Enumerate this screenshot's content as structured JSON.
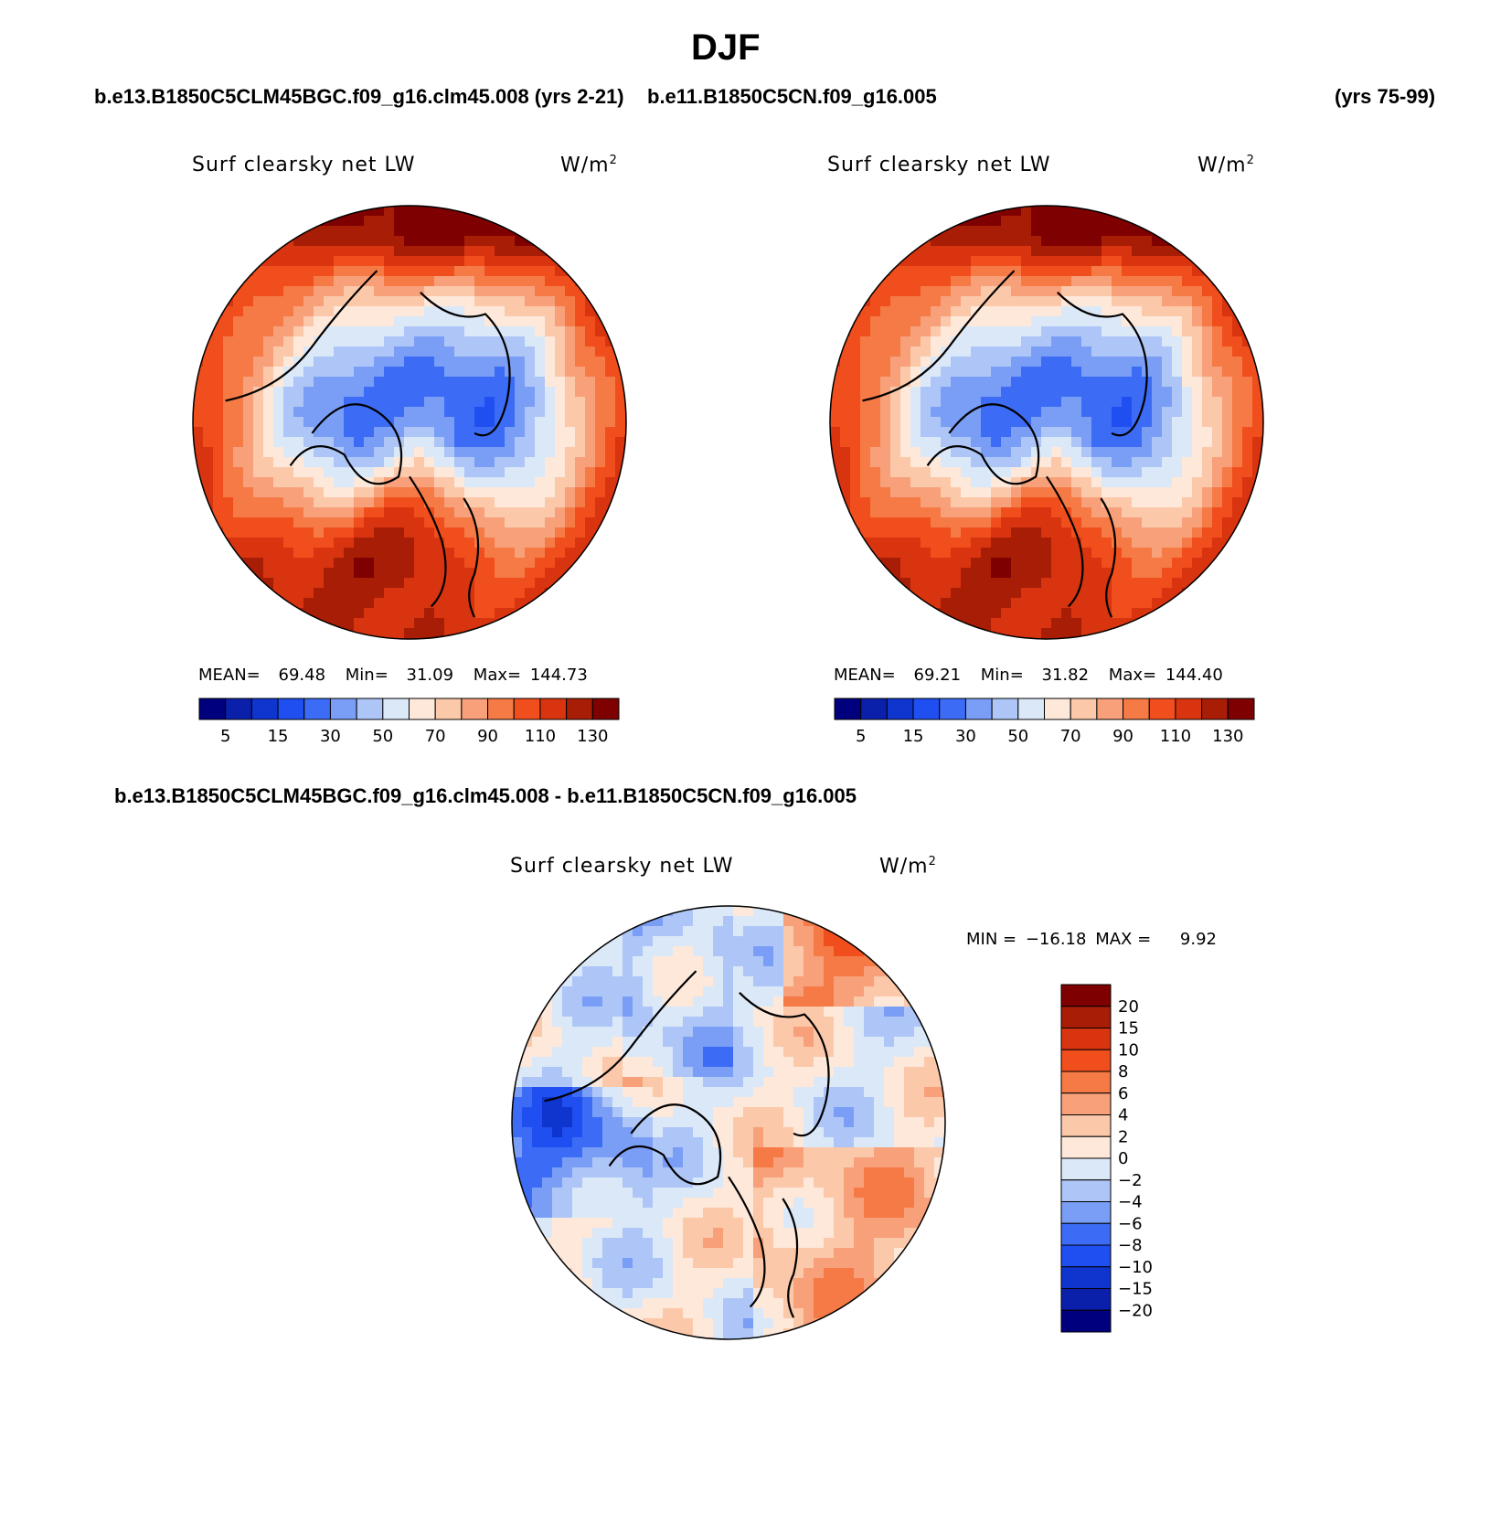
{
  "figure": {
    "title": "DJF",
    "case_a": "b.e13.B1850C5CLM45BGC.f09_g16.clm45.008 (yrs 2-21)",
    "case_b": "b.e11.B1850C5CN.f09_g16.005",
    "case_b_years": "(yrs 75-99)",
    "diff_title": "b.e13.B1850C5CLM45BGC.f09_g16.clm45.008 - b.e11.B1850C5CN.f09_g16.005"
  },
  "panels": [
    {
      "variable": "Surf clearsky net LW",
      "units": "W/m",
      "units_sup": "2",
      "stats": {
        "mean_label": "MEAN=",
        "mean": "69.48",
        "min_label": "Min=",
        "min": "31.09",
        "max_label": "Max=",
        "max": "144.73"
      }
    },
    {
      "variable": "Surf clearsky net LW",
      "units": "W/m",
      "units_sup": "2",
      "stats": {
        "mean_label": "MEAN=",
        "mean": "69.21",
        "min_label": "Min=",
        "min": "31.82",
        "max_label": "Max=",
        "max": "144.40"
      }
    },
    {
      "variable": "Surf clearsky net LW",
      "units": "W/m",
      "units_sup": "2",
      "stats": {
        "min_label": "MIN =",
        "min": "−16.18",
        "max_label": "MAX =",
        "max": "9.92"
      }
    }
  ],
  "chart_data": [
    {
      "type": "heatmap",
      "title": "Surf clearsky net LW",
      "projection": "north-polar-stereographic",
      "units": "W/m^2",
      "mean": 69.48,
      "min": 31.09,
      "max": 144.73,
      "levels": [
        5,
        10,
        15,
        20,
        30,
        40,
        50,
        60,
        70,
        80,
        90,
        100,
        110,
        120,
        130
      ],
      "tick_labels": [
        "5",
        "15",
        "30",
        "50",
        "70",
        "90",
        "110",
        "130"
      ],
      "colors": [
        "#00007f",
        "#0a1faa",
        "#0f35cf",
        "#1f4ff0",
        "#3c6cf5",
        "#7a9ef5",
        "#aec6f7",
        "#dbe8f8",
        "#fde8da",
        "#fbc8aa",
        "#f7a07a",
        "#f57a45",
        "#f04e1c",
        "#d83410",
        "#a81d06",
        "#7f0000"
      ]
    },
    {
      "type": "heatmap",
      "title": "Surf clearsky net LW",
      "projection": "north-polar-stereographic",
      "units": "W/m^2",
      "mean": 69.21,
      "min": 31.82,
      "max": 144.4,
      "levels": [
        5,
        10,
        15,
        20,
        30,
        40,
        50,
        60,
        70,
        80,
        90,
        100,
        110,
        120,
        130
      ],
      "tick_labels": [
        "5",
        "15",
        "30",
        "50",
        "70",
        "90",
        "110",
        "130"
      ],
      "colors": [
        "#00007f",
        "#0a1faa",
        "#0f35cf",
        "#1f4ff0",
        "#3c6cf5",
        "#7a9ef5",
        "#aec6f7",
        "#dbe8f8",
        "#fde8da",
        "#fbc8aa",
        "#f7a07a",
        "#f57a45",
        "#f04e1c",
        "#d83410",
        "#a81d06",
        "#7f0000"
      ]
    },
    {
      "type": "heatmap",
      "title": "Surf clearsky net LW",
      "projection": "north-polar-stereographic",
      "units": "W/m^2",
      "min": -16.18,
      "max": 9.92,
      "levels": [
        -20,
        -15,
        -10,
        -8,
        -6,
        -4,
        -2,
        0,
        2,
        4,
        6,
        8,
        10,
        15,
        20
      ],
      "tick_labels": [
        "20",
        "15",
        "10",
        "8",
        "6",
        "4",
        "2",
        "0",
        "−2",
        "−4",
        "−6",
        "−8",
        "−10",
        "−15",
        "−20"
      ],
      "colors": [
        "#7f0000",
        "#a81d06",
        "#d83410",
        "#f04e1c",
        "#f57a45",
        "#f7a07a",
        "#fbc8aa",
        "#fde8da",
        "#dbe8f8",
        "#aec6f7",
        "#7a9ef5",
        "#3c6cf5",
        "#1f4ff0",
        "#0f35cf",
        "#0a1faa",
        "#00007f"
      ]
    }
  ]
}
